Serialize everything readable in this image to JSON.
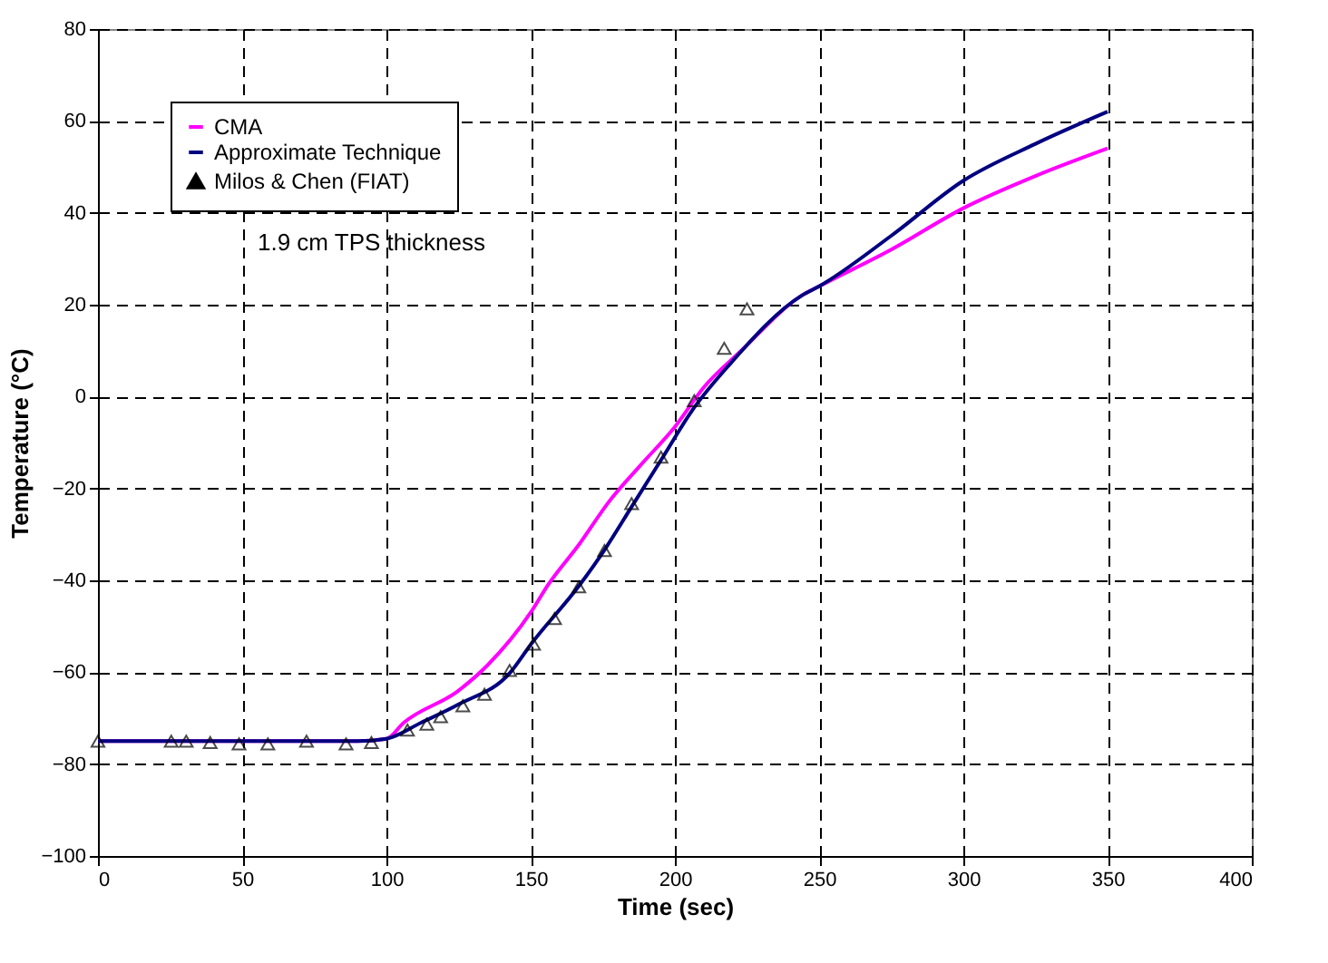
{
  "chart_data": {
    "type": "line",
    "xlabel": "Time (sec)",
    "ylabel": "Temperature (°C)",
    "annotations": [
      "1.9 cm TPS thickness"
    ],
    "xlim": [
      0,
      400
    ],
    "xticks": [
      0,
      50,
      100,
      150,
      200,
      250,
      300,
      350,
      400
    ],
    "ylim": [
      -100,
      80
    ],
    "yticks": [
      -100,
      -80,
      -60,
      -40,
      -20,
      0,
      20,
      40,
      60,
      80
    ],
    "grid": true,
    "legend": "top left",
    "series": [
      {
        "name": "CMA",
        "color": "#ff00ff",
        "marker": "none",
        "x": [
          0,
          90,
          100,
          106,
          125,
          135,
          150,
          156,
          167,
          177,
          188,
          200,
          210,
          223,
          244,
          250,
          275,
          300,
          325,
          350
        ],
        "values": [
          -75,
          -75,
          -74.5,
          -71,
          -64,
          -58.5,
          -47,
          -41,
          -32,
          -23,
          -15,
          -6.6,
          2,
          10,
          22,
          24,
          32,
          41,
          48,
          54
        ]
      },
      {
        "name": "Approximate Technique",
        "color": "#000080",
        "marker": "none",
        "x": [
          0,
          90,
          100,
          112,
          125,
          143,
          150,
          167,
          176,
          185,
          196,
          206,
          219,
          244,
          250,
          275,
          300,
          325,
          350
        ],
        "values": [
          -75,
          -75,
          -74.5,
          -71,
          -67,
          -60,
          -54,
          -41,
          -33,
          -24,
          -13,
          -3,
          7,
          22,
          24,
          35,
          47,
          55,
          62
        ]
      },
      {
        "name": "Milos & Chen (FIAT)",
        "color": "#000000",
        "type": "scatter",
        "marker": "triangle",
        "x": [
          0,
          25.4,
          30.6,
          38.9,
          48.9,
          58.9,
          72.3,
          86,
          94.8,
          107.3,
          114,
          118.8,
          126.5,
          134,
          142.7,
          151,
          158.3,
          166.7,
          175.6,
          185,
          195.2,
          206.7,
          217.1,
          225
        ],
        "values": [
          -75,
          -75,
          -75,
          -75.3,
          -75.6,
          -75.6,
          -75,
          -75.6,
          -75.3,
          -72.6,
          -71.3,
          -69.7,
          -67.3,
          -64.8,
          -59.6,
          -53.9,
          -48.3,
          -41.4,
          -33.5,
          -23.3,
          -13.2,
          -0.9,
          10.5,
          19.1
        ]
      }
    ]
  }
}
